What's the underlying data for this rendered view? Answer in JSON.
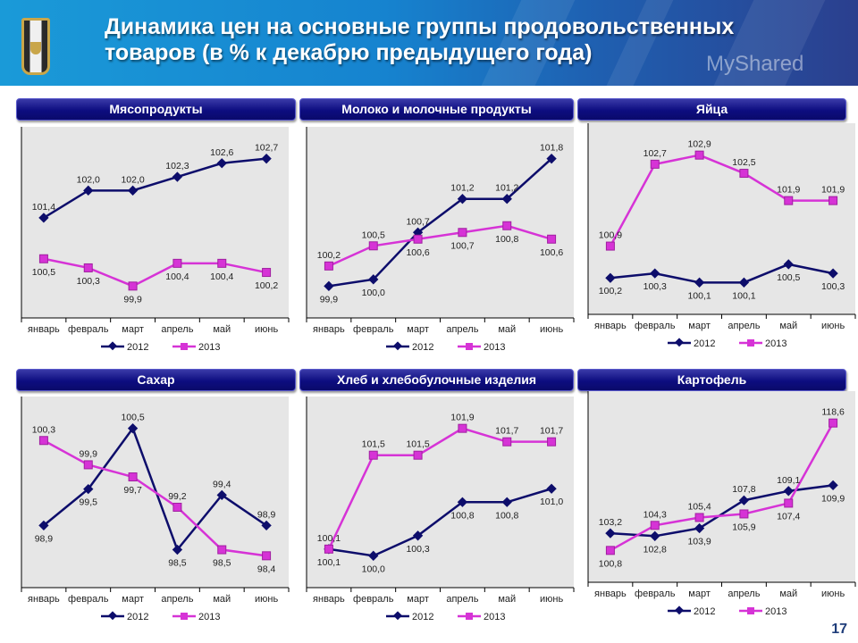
{
  "title": "Динамика цен на основные группы продовольственных товаров (в % к декабрю предыдущего года)",
  "title_line1": "Динамика цен на основные группы продовольственных",
  "title_line2": "товаров (в % к декабрю предыдущего года)",
  "page_number": "17",
  "watermark": "MyShared",
  "colors": {
    "series_2012": "#0d0d6b",
    "series_2013": "#d633d6",
    "plot_bg": "#e6e6e6",
    "tab_bg": "#0d0d80"
  },
  "chart_data": [
    {
      "type": "line",
      "title": "Мясопродукты",
      "categories": [
        "январь",
        "февраль",
        "март",
        "апрель",
        "май",
        "июнь"
      ],
      "series": [
        {
          "name": "2012",
          "values": [
            101.4,
            102.0,
            102.0,
            102.3,
            102.6,
            102.7
          ],
          "labels": [
            "101,4",
            "102,0",
            "102,0",
            "102,3",
            "102,6",
            "102,7"
          ]
        },
        {
          "name": "2013",
          "values": [
            100.5,
            100.3,
            99.9,
            100.4,
            100.4,
            100.2
          ],
          "labels": [
            "100,5",
            "100,3",
            "99,9",
            "100,4",
            "100,4",
            "100,2"
          ]
        }
      ],
      "legend": "bottom",
      "grid": false
    },
    {
      "type": "line",
      "title": "Молоко и молочные продукты",
      "categories": [
        "январь",
        "февраль",
        "март",
        "апрель",
        "май",
        "июнь"
      ],
      "series": [
        {
          "name": "2012",
          "values": [
            99.9,
            100.0,
            100.7,
            101.2,
            101.2,
            101.8
          ],
          "labels": [
            "99,9",
            "100,0",
            "100,7",
            "101,2",
            "101,2",
            "101,8"
          ]
        },
        {
          "name": "2013",
          "values": [
            100.2,
            100.5,
            100.6,
            100.7,
            100.8,
            100.6
          ],
          "labels": [
            "100,2",
            "100,5",
            "100,6",
            "100,7",
            "100,8",
            "100,6"
          ]
        }
      ],
      "legend": "bottom",
      "grid": false
    },
    {
      "type": "line",
      "title": "Яйца",
      "categories": [
        "январь",
        "февраль",
        "март",
        "апрель",
        "май",
        "июнь"
      ],
      "series": [
        {
          "name": "2012",
          "values": [
            100.2,
            100.3,
            100.1,
            100.1,
            100.5,
            100.3
          ],
          "labels": [
            "100,2",
            "100,3",
            "100,1",
            "100,1",
            "100,5",
            "100,3"
          ]
        },
        {
          "name": "2013",
          "values": [
            100.9,
            102.7,
            102.9,
            102.5,
            101.9,
            101.9
          ],
          "labels": [
            "100,9",
            "102,7",
            "102,9",
            "102,5",
            "101,9",
            "101,9"
          ]
        }
      ],
      "legend": "bottom",
      "grid": false
    },
    {
      "type": "line",
      "title": "Сахар",
      "categories": [
        "январь",
        "февраль",
        "март",
        "апрель",
        "май",
        "июнь"
      ],
      "series": [
        {
          "name": "2012",
          "values": [
            98.9,
            99.5,
            100.5,
            98.5,
            99.4,
            98.9
          ],
          "labels": [
            "98,9",
            "99,5",
            "100,5",
            "98,5",
            "99,4",
            "98,9"
          ]
        },
        {
          "name": "2013",
          "values": [
            100.3,
            99.9,
            99.7,
            99.2,
            98.5,
            98.4
          ],
          "labels": [
            "100,3",
            "99,9",
            "99,7",
            "99,2",
            "98,5",
            "98,4"
          ]
        }
      ],
      "legend": "bottom",
      "grid": false
    },
    {
      "type": "line",
      "title": "Хлеб и хлебобулочные изделия",
      "categories": [
        "январь",
        "февраль",
        "март",
        "апрель",
        "май",
        "июнь"
      ],
      "series": [
        {
          "name": "2012",
          "values": [
            100.1,
            100.0,
            100.3,
            100.8,
            100.8,
            101.0
          ],
          "labels": [
            "100,1",
            "100,0",
            "100,3",
            "100,8",
            "100,8",
            "101,0"
          ]
        },
        {
          "name": "2013",
          "values": [
            100.1,
            101.5,
            101.5,
            101.9,
            101.7,
            101.7
          ],
          "labels": [
            "100,1",
            "101,5",
            "101,5",
            "101,9",
            "101,7",
            "101,7"
          ]
        }
      ],
      "legend": "bottom",
      "grid": false
    },
    {
      "type": "line",
      "title": "Картофель",
      "categories": [
        "январь",
        "февраль",
        "март",
        "апрель",
        "май",
        "июнь"
      ],
      "series": [
        {
          "name": "2012",
          "values": [
            103.2,
            102.8,
            103.9,
            107.8,
            109.1,
            109.9
          ],
          "labels": [
            "103,2",
            "102,8",
            "103,9",
            "107,8",
            "109,1",
            "109,9"
          ]
        },
        {
          "name": "2013",
          "values": [
            100.8,
            104.3,
            105.4,
            105.9,
            107.4,
            118.6
          ],
          "labels": [
            "100,8",
            "104,3",
            "105,4",
            "105,9",
            "107,4",
            "118,6"
          ]
        }
      ],
      "legend": "bottom",
      "grid": false
    }
  ]
}
